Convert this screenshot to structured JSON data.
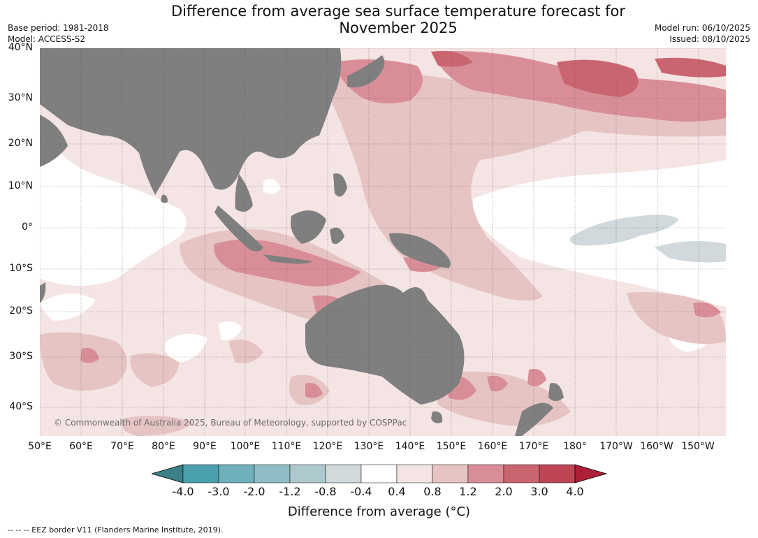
{
  "title": {
    "line1": "Difference from average sea surface temperature forecast for",
    "line2": "November 2025"
  },
  "meta": {
    "base_period": "Base period: 1981-2018",
    "model": "Model: ACCESS-S2",
    "model_run": "Model run: 06/10/2025",
    "issued": "Issued: 08/10/2025"
  },
  "map": {
    "copyright": "© Commonwealth of Australia 2025, Bureau of Meteorology, supported by COSPPac",
    "land_color": "#7f7f7f",
    "lat_labels": [
      "40°N",
      "30°N",
      "20°N",
      "10°N",
      "0°",
      "10°S",
      "20°S",
      "30°S",
      "40°S"
    ],
    "lon_labels": [
      "50°E",
      "60°E",
      "70°E",
      "80°E",
      "90°E",
      "100°E",
      "110°E",
      "120°E",
      "130°E",
      "140°E",
      "150°E",
      "160°E",
      "170°E",
      "180°",
      "170°W",
      "160°W",
      "150°W"
    ]
  },
  "colorbar": {
    "label": "Difference from average (°C)",
    "ticks": [
      "-4.0",
      "-3.0",
      "-2.0",
      "-1.2",
      "-0.8",
      "-0.4",
      "0.4",
      "0.8",
      "1.2",
      "2.0",
      "3.0",
      "4.0"
    ],
    "colors": [
      "#4a9fae",
      "#6fb0bb",
      "#8fbcc5",
      "#adc9cd",
      "#d1d9dc",
      "#ffffff",
      "#f4e4e3",
      "#e6c4c3",
      "#d98e97",
      "#c96570",
      "#bf4555"
    ],
    "under_color": "#3d7f87",
    "over_color": "#ad1f36"
  },
  "footnote": "--  --  -- EEZ border V11 (Flanders Marine Institute, 2019)."
}
